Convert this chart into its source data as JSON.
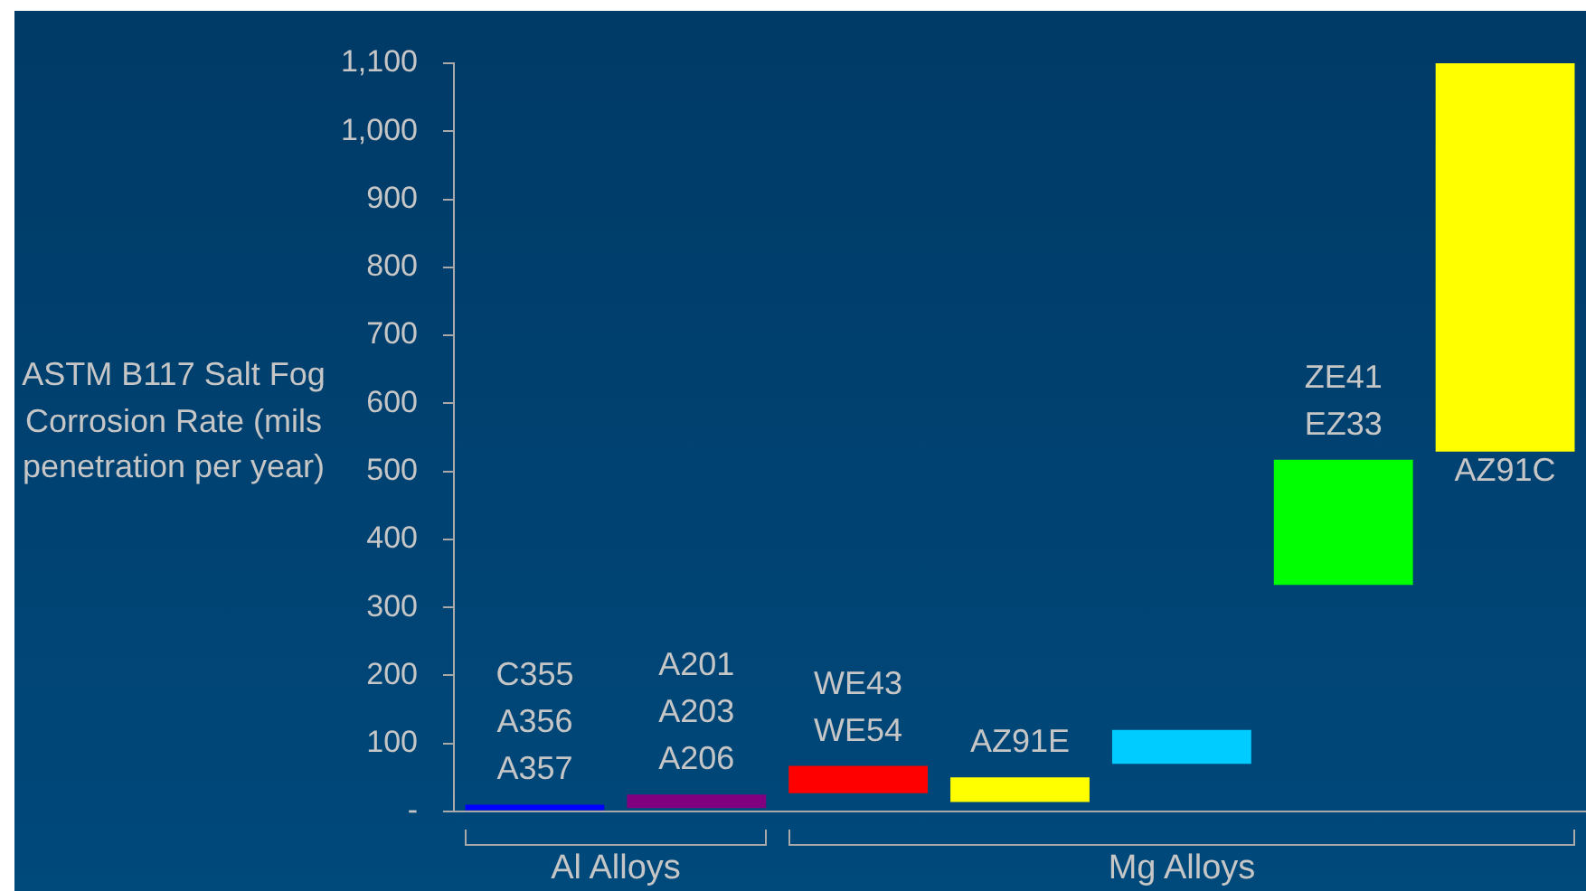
{
  "chart_data": {
    "type": "bar",
    "ylabel": "ASTM B117 Salt Fog Corrosion Rate (mils penetration per year)",
    "categories": [
      "C355\nA356\nA357",
      "A201\nA203\nA206",
      "WE43\nWE54",
      "AZ91E",
      null,
      "ZE41\nEZ33",
      "AZ91C"
    ],
    "series": [
      {
        "name": "Al Alloys",
        "colors": [
          "#0000ff",
          "#800080",
          null,
          null,
          null,
          null,
          null
        ],
        "base": [
          2,
          5,
          null,
          null,
          null,
          null,
          null
        ],
        "values": [
          8,
          20,
          null,
          null,
          null,
          null,
          null
        ]
      },
      {
        "name": "Mg Alloys",
        "colors": [
          null,
          null,
          "#ff0000",
          "#ffff00",
          "#00ccff",
          "#00ff00",
          "#ffff00"
        ],
        "base": [
          null,
          null,
          27,
          14,
          70,
          333,
          529
        ],
        "values": [
          null,
          null,
          40,
          36,
          50,
          184,
          571
        ]
      }
    ],
    "ylim": [
      0,
      1100
    ],
    "yticks": [
      {
        "value": 0,
        "label": "-"
      },
      100,
      200,
      300,
      400,
      500,
      600,
      700,
      800,
      900,
      {
        "value": 1000,
        "label": "1,000"
      },
      {
        "value": 1100,
        "label": "1,100"
      }
    ]
  }
}
